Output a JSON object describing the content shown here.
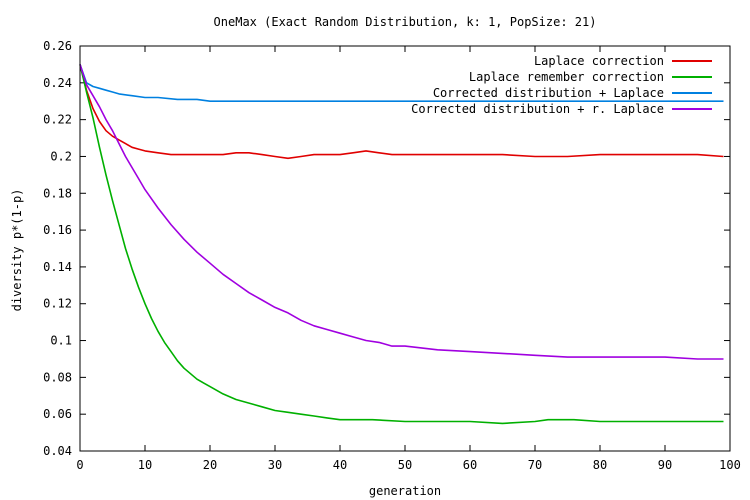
{
  "chart_data": {
    "type": "line",
    "title": "OneMax (Exact Random Distribution, k: 1, PopSize: 21)",
    "xlabel": "generation",
    "ylabel": "diversity p*(1-p)",
    "xlim": [
      0,
      100
    ],
    "ylim": [
      0.04,
      0.26
    ],
    "xticks": [
      0,
      10,
      20,
      30,
      40,
      50,
      60,
      70,
      80,
      90,
      100
    ],
    "yticks": [
      0.04,
      0.06,
      0.08,
      0.1,
      0.12,
      0.14,
      0.16,
      0.18,
      0.2,
      0.22,
      0.24,
      0.26
    ],
    "xtick_labels": [
      "0",
      "10",
      "20",
      "30",
      "40",
      "50",
      "60",
      "70",
      "80",
      "90",
      "100"
    ],
    "ytick_labels": [
      "0.04",
      "0.06",
      "0.08",
      "0.1",
      "0.12",
      "0.14",
      "0.16",
      "0.18",
      "0.2",
      "0.22",
      "0.24",
      "0.26"
    ],
    "grid": false,
    "legend_position": "top-right",
    "series": [
      {
        "name": "Laplace correction",
        "color": "#e00000",
        "x": [
          0,
          1,
          2,
          3,
          4,
          5,
          6,
          7,
          8,
          9,
          10,
          12,
          14,
          16,
          18,
          20,
          22,
          24,
          26,
          28,
          30,
          32,
          34,
          36,
          38,
          40,
          42,
          44,
          46,
          48,
          50,
          55,
          60,
          65,
          70,
          75,
          80,
          85,
          90,
          95,
          99
        ],
        "y": [
          0.25,
          0.236,
          0.226,
          0.219,
          0.214,
          0.211,
          0.209,
          0.207,
          0.205,
          0.204,
          0.203,
          0.202,
          0.201,
          0.201,
          0.201,
          0.201,
          0.201,
          0.202,
          0.202,
          0.201,
          0.2,
          0.199,
          0.2,
          0.201,
          0.201,
          0.201,
          0.202,
          0.203,
          0.202,
          0.201,
          0.201,
          0.201,
          0.201,
          0.201,
          0.2,
          0.2,
          0.201,
          0.201,
          0.201,
          0.201,
          0.2
        ]
      },
      {
        "name": "Laplace remember correction",
        "color": "#00b000",
        "x": [
          0,
          1,
          2,
          3,
          4,
          5,
          6,
          7,
          8,
          9,
          10,
          11,
          12,
          13,
          14,
          15,
          16,
          17,
          18,
          19,
          20,
          22,
          24,
          26,
          28,
          30,
          32,
          34,
          36,
          38,
          40,
          45,
          50,
          55,
          60,
          65,
          70,
          72,
          74,
          76,
          80,
          85,
          90,
          95,
          99
        ],
        "y": [
          0.25,
          0.235,
          0.221,
          0.205,
          0.19,
          0.176,
          0.163,
          0.15,
          0.139,
          0.129,
          0.12,
          0.112,
          0.105,
          0.099,
          0.094,
          0.089,
          0.085,
          0.082,
          0.079,
          0.077,
          0.075,
          0.071,
          0.068,
          0.066,
          0.064,
          0.062,
          0.061,
          0.06,
          0.059,
          0.058,
          0.057,
          0.057,
          0.056,
          0.056,
          0.056,
          0.055,
          0.056,
          0.057,
          0.057,
          0.057,
          0.056,
          0.056,
          0.056,
          0.056,
          0.056
        ]
      },
      {
        "name": "Corrected distribution + Laplace",
        "color": "#0080e0",
        "x": [
          0,
          1,
          2,
          3,
          4,
          5,
          6,
          8,
          10,
          12,
          15,
          18,
          20,
          25,
          30,
          35,
          40,
          45,
          50,
          55,
          60,
          65,
          70,
          75,
          80,
          85,
          90,
          95,
          99
        ],
        "y": [
          0.25,
          0.24,
          0.238,
          0.237,
          0.236,
          0.235,
          0.234,
          0.233,
          0.232,
          0.232,
          0.231,
          0.231,
          0.23,
          0.23,
          0.23,
          0.23,
          0.23,
          0.23,
          0.23,
          0.23,
          0.23,
          0.23,
          0.23,
          0.23,
          0.23,
          0.23,
          0.23,
          0.23,
          0.23
        ]
      },
      {
        "name": "Corrected distribution + r. Laplace",
        "color": "#a000e0",
        "x": [
          0,
          1,
          2,
          3,
          4,
          5,
          6,
          7,
          8,
          9,
          10,
          12,
          14,
          16,
          18,
          20,
          22,
          24,
          26,
          28,
          30,
          32,
          34,
          36,
          38,
          40,
          42,
          44,
          46,
          48,
          50,
          55,
          60,
          65,
          70,
          75,
          80,
          85,
          90,
          95,
          99
        ],
        "y": [
          0.25,
          0.239,
          0.233,
          0.227,
          0.22,
          0.214,
          0.207,
          0.2,
          0.194,
          0.188,
          0.182,
          0.172,
          0.163,
          0.155,
          0.148,
          0.142,
          0.136,
          0.131,
          0.126,
          0.122,
          0.118,
          0.115,
          0.111,
          0.108,
          0.106,
          0.104,
          0.102,
          0.1,
          0.099,
          0.097,
          0.097,
          0.095,
          0.094,
          0.093,
          0.092,
          0.091,
          0.091,
          0.091,
          0.091,
          0.09,
          0.09
        ]
      }
    ]
  }
}
